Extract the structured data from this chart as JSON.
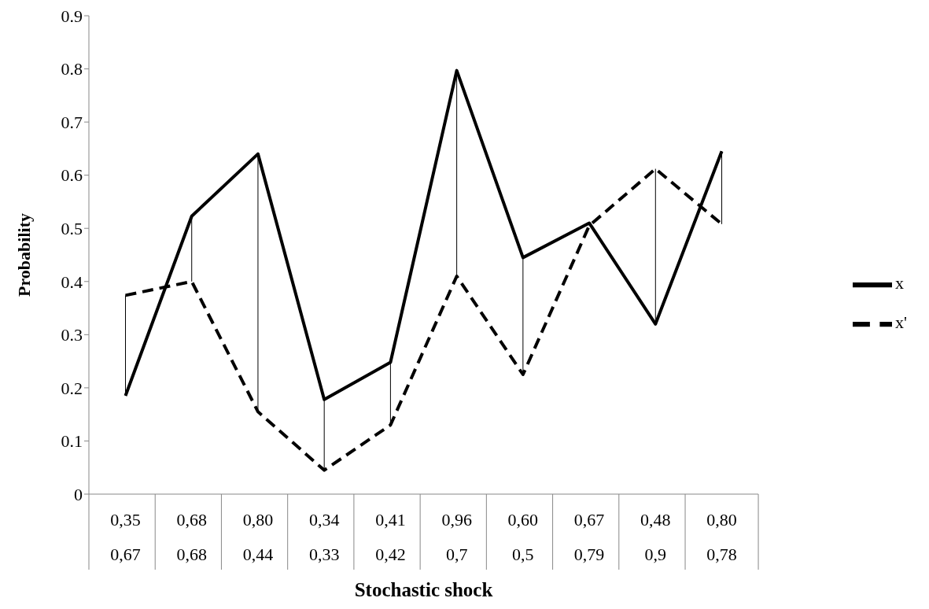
{
  "chart_data": {
    "type": "line",
    "xlabel": "Stochastic shock",
    "ylabel": "Probability",
    "categories": [
      "0,35\n0,67",
      "0,68\n0,68",
      "0,80\n0,44",
      "0,34\n0,33",
      "0,41\n0,42",
      "0,96\n0,7",
      "0,60\n0,5",
      "0,67\n0,79",
      "0,48\n0,9",
      "0,80\n0,78"
    ],
    "series": [
      {
        "name": "x",
        "color": "#000000",
        "line_style": "solid",
        "values": [
          0.185,
          0.523,
          0.64,
          0.178,
          0.248,
          0.797,
          0.445,
          0.51,
          0.32,
          0.645
        ]
      },
      {
        "name": "x'",
        "color": "#000000",
        "line_style": "dashed",
        "values": [
          0.374,
          0.4,
          0.155,
          0.045,
          0.13,
          0.41,
          0.225,
          0.505,
          0.612,
          0.508
        ]
      }
    ],
    "ylim": [
      0,
      0.9
    ],
    "yticks": [
      0,
      0.1,
      0.2,
      0.3,
      0.4,
      0.5,
      0.6,
      0.7,
      0.8,
      0.9
    ],
    "grid": false,
    "legend": "right",
    "marker": "none"
  }
}
